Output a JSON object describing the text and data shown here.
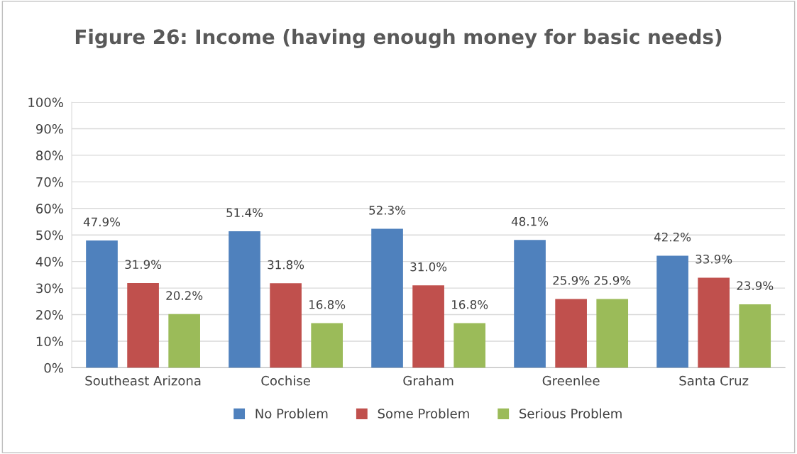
{
  "chart_data": {
    "type": "bar",
    "title": "Figure 26: Income (having enough money for basic needs)",
    "categories": [
      "Southeast Arizona",
      "Cochise",
      "Graham",
      "Greenlee",
      "Santa Cruz"
    ],
    "series": [
      {
        "name": "No Problem",
        "color": "#4f81bd",
        "values": [
          47.9,
          51.4,
          52.3,
          48.1,
          42.2
        ],
        "value_labels": [
          "47.9%",
          "51.4%",
          "52.3%",
          "48.1%",
          "42.2%"
        ]
      },
      {
        "name": "Some Problem",
        "color": "#c0504d",
        "values": [
          31.9,
          31.8,
          31.0,
          25.9,
          33.9
        ],
        "value_labels": [
          "31.9%",
          "31.8%",
          "31.0%",
          "25.9%",
          "33.9%"
        ]
      },
      {
        "name": "Serious Problem",
        "color": "#9bbb59",
        "values": [
          20.2,
          16.8,
          16.8,
          25.9,
          23.9
        ],
        "value_labels": [
          "20.2%",
          "16.8%",
          "16.8%",
          "25.9%",
          "23.9%"
        ]
      }
    ],
    "ylim": [
      0,
      100
    ],
    "yticks": [
      {
        "value": 0,
        "label": "0%"
      },
      {
        "value": 10,
        "label": "10%"
      },
      {
        "value": 20,
        "label": "20%"
      },
      {
        "value": 30,
        "label": "30%"
      },
      {
        "value": 40,
        "label": "40%"
      },
      {
        "value": 50,
        "label": "50%"
      },
      {
        "value": 60,
        "label": "60%"
      },
      {
        "value": 70,
        "label": "70%"
      },
      {
        "value": 80,
        "label": "80%"
      },
      {
        "value": 90,
        "label": "90%"
      },
      {
        "value": 100,
        "label": "100%"
      }
    ],
    "grid": "y",
    "legend": "bottom"
  }
}
